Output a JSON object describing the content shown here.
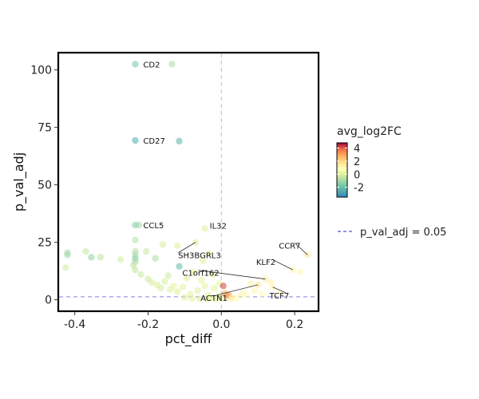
{
  "chart_data": {
    "type": "scatter",
    "xlabel": "pct_diff",
    "ylabel": "p_val_adj",
    "xlim": [
      -0.445,
      0.265
    ],
    "ylim": [
      -5,
      107.5
    ],
    "x_ticks": [
      -0.4,
      -0.2,
      0.0,
      0.2
    ],
    "x_tick_labels": [
      "-0.4",
      "-0.2",
      "0.0",
      "0.2"
    ],
    "y_ticks": [
      0,
      25,
      50,
      75,
      100
    ],
    "y_tick_labels": [
      "0",
      "25",
      "50",
      "75",
      "100"
    ],
    "vline_x": 0,
    "hline_y": 1.3,
    "color_scale": {
      "title": "avg_log2FC",
      "min": -3.5,
      "max": 4.8,
      "ticks": [
        4,
        2,
        0,
        -2
      ],
      "tick_labels": [
        "4",
        "2",
        "0",
        "-2"
      ],
      "palette": "Spectral"
    },
    "legend": {
      "threshold_label": "p_val_adj = 0.05",
      "threshold_color": "#6a6ae0",
      "position": "right"
    },
    "points": [
      {
        "x": -0.235,
        "y": 102.5,
        "c": -1.8
      },
      {
        "x": -0.135,
        "y": 102.5,
        "c": -0.9
      },
      {
        "x": -0.235,
        "y": 69.3,
        "c": -2.6
      },
      {
        "x": -0.115,
        "y": 69.0,
        "c": -2.4
      },
      {
        "x": -0.235,
        "y": 32.5,
        "c": -1.6
      },
      {
        "x": -0.225,
        "y": 32.5,
        "c": -1.0
      },
      {
        "x": -0.42,
        "y": 20.5,
        "c": -0.9
      },
      {
        "x": -0.42,
        "y": 19.5,
        "c": -1.1
      },
      {
        "x": -0.425,
        "y": 14.0,
        "c": -0.2
      },
      {
        "x": -0.37,
        "y": 21.0,
        "c": -0.4
      },
      {
        "x": -0.355,
        "y": 18.5,
        "c": -1.3
      },
      {
        "x": -0.33,
        "y": 18.5,
        "c": -0.6
      },
      {
        "x": -0.275,
        "y": 17.5,
        "c": -0.2
      },
      {
        "x": -0.235,
        "y": 26.0,
        "c": -0.7
      },
      {
        "x": -0.235,
        "y": 21.0,
        "c": -0.8
      },
      {
        "x": -0.235,
        "y": 19.5,
        "c": -0.9
      },
      {
        "x": -0.235,
        "y": 18.0,
        "c": -1.4
      },
      {
        "x": -0.235,
        "y": 16.5,
        "c": -1.0
      },
      {
        "x": -0.24,
        "y": 15.0,
        "c": -0.6
      },
      {
        "x": -0.235,
        "y": 13.0,
        "c": -0.5
      },
      {
        "x": -0.22,
        "y": 11.0,
        "c": -0.4
      },
      {
        "x": -0.205,
        "y": 21.0,
        "c": -0.3
      },
      {
        "x": -0.18,
        "y": 18.0,
        "c": -0.9
      },
      {
        "x": -0.16,
        "y": 24.0,
        "c": -0.1
      },
      {
        "x": -0.145,
        "y": 10.5,
        "c": -0.3
      },
      {
        "x": -0.12,
        "y": 23.5,
        "c": 0.0
      },
      {
        "x": -0.115,
        "y": 14.5,
        "c": -2.2
      },
      {
        "x": -0.07,
        "y": 25.0,
        "c": 0.0
      },
      {
        "x": -0.045,
        "y": 31.0,
        "c": 0.0
      },
      {
        "x": -0.035,
        "y": 20.0,
        "c": 0.1
      },
      {
        "x": -0.05,
        "y": 17.0,
        "c": 0.0
      },
      {
        "x": -0.2,
        "y": 9.0,
        "c": -0.3
      },
      {
        "x": -0.19,
        "y": 7.5,
        "c": -0.2
      },
      {
        "x": -0.175,
        "y": 6.5,
        "c": -0.1
      },
      {
        "x": -0.165,
        "y": 5.0,
        "c": -0.2
      },
      {
        "x": -0.155,
        "y": 8.0,
        "c": -0.1
      },
      {
        "x": -0.14,
        "y": 4.5,
        "c": 0.0
      },
      {
        "x": -0.13,
        "y": 6.0,
        "c": 0.1
      },
      {
        "x": -0.12,
        "y": 3.5,
        "c": 0.0
      },
      {
        "x": -0.105,
        "y": 5.5,
        "c": 0.1
      },
      {
        "x": -0.095,
        "y": 9.5,
        "c": 0.0
      },
      {
        "x": -0.085,
        "y": 2.5,
        "c": 0.1
      },
      {
        "x": -0.075,
        "y": 12.0,
        "c": 0.1
      },
      {
        "x": -0.065,
        "y": 4.0,
        "c": 0.0
      },
      {
        "x": -0.055,
        "y": 8.5,
        "c": 0.1
      },
      {
        "x": -0.045,
        "y": 6.0,
        "c": 0.1
      },
      {
        "x": -0.035,
        "y": 2.0,
        "c": 0.1
      },
      {
        "x": -0.025,
        "y": 11.0,
        "c": 0.2
      },
      {
        "x": -0.02,
        "y": 5.0,
        "c": 0.1
      },
      {
        "x": -0.01,
        "y": 1.5,
        "c": 0.1
      },
      {
        "x": -0.005,
        "y": 7.0,
        "c": 0.2
      },
      {
        "x": -0.1,
        "y": 1.0,
        "c": 0.0
      },
      {
        "x": -0.08,
        "y": 0.5,
        "c": 0.1
      },
      {
        "x": -0.06,
        "y": 0.5,
        "c": 0.0
      },
      {
        "x": -0.04,
        "y": 0.3,
        "c": 0.1
      },
      {
        "x": -0.03,
        "y": 0.8,
        "c": 0.2
      },
      {
        "x": -0.015,
        "y": 0.2,
        "c": 0.1
      },
      {
        "x": 0.005,
        "y": 0.5,
        "c": 0.3
      },
      {
        "x": 0.01,
        "y": 3.0,
        "c": 0.5
      },
      {
        "x": 0.005,
        "y": 6.0,
        "c": 4.2
      },
      {
        "x": 0.01,
        "y": 2.5,
        "c": 3.0
      },
      {
        "x": 0.015,
        "y": 1.5,
        "c": 2.6
      },
      {
        "x": 0.02,
        "y": 2.0,
        "c": 3.4
      },
      {
        "x": 0.025,
        "y": 0.5,
        "c": 1.5
      },
      {
        "x": 0.03,
        "y": 1.0,
        "c": 1.2
      },
      {
        "x": 0.04,
        "y": 0.5,
        "c": 0.9
      },
      {
        "x": 0.05,
        "y": 1.5,
        "c": 1.0
      },
      {
        "x": 0.06,
        "y": 3.0,
        "c": 1.2
      },
      {
        "x": 0.07,
        "y": 2.0,
        "c": 0.9
      },
      {
        "x": 0.08,
        "y": 7.0,
        "c": 1.3
      },
      {
        "x": 0.09,
        "y": 4.0,
        "c": 1.1
      },
      {
        "x": 0.1,
        "y": 6.5,
        "c": 1.6
      },
      {
        "x": 0.11,
        "y": 2.5,
        "c": 1.0
      },
      {
        "x": 0.12,
        "y": 9.0,
        "c": 1.4
      },
      {
        "x": 0.135,
        "y": 7.5,
        "c": 1.2
      },
      {
        "x": 0.14,
        "y": 5.5,
        "c": 1.1
      },
      {
        "x": 0.16,
        "y": 3.0,
        "c": 0.9
      },
      {
        "x": 0.195,
        "y": 13.0,
        "c": 1.2
      },
      {
        "x": 0.215,
        "y": 12.0,
        "c": 1.1
      },
      {
        "x": 0.235,
        "y": 19.5,
        "c": 1.5
      }
    ],
    "annotations": [
      {
        "label": "CD2",
        "x": -0.235,
        "y": 102.5,
        "ha": "right",
        "dx": 10,
        "dy": 0
      },
      {
        "label": "CD27",
        "x": -0.235,
        "y": 69.3,
        "ha": "right",
        "dx": 10,
        "dy": 0
      },
      {
        "label": "CCL5",
        "x": -0.235,
        "y": 32.5,
        "ha": "right",
        "dx": 10,
        "dy": 0
      },
      {
        "label": "IL32",
        "x": -0.045,
        "y": 31.0,
        "ha": "right",
        "dx": 6,
        "dy": -4
      },
      {
        "label": "SH3BGRL3",
        "x": -0.07,
        "y": 25.0,
        "ha": "right",
        "dx": -22,
        "dy": 16
      },
      {
        "label": "CCR7",
        "x": 0.235,
        "y": 19.5,
        "ha": "left",
        "dx": -36,
        "dy": -12
      },
      {
        "label": "KLF2",
        "x": 0.195,
        "y": 13.0,
        "ha": "left",
        "dx": -46,
        "dy": -10
      },
      {
        "label": "TCF7",
        "x": 0.14,
        "y": 5.5,
        "ha": "left",
        "dx": -4,
        "dy": 10
      },
      {
        "label": "C1orf162",
        "x": 0.12,
        "y": 9.0,
        "ha": "left",
        "dx": -104,
        "dy": -8
      },
      {
        "label": "ACTN1",
        "x": 0.1,
        "y": 6.5,
        "ha": "left",
        "dx": -72,
        "dy": 16
      }
    ]
  }
}
